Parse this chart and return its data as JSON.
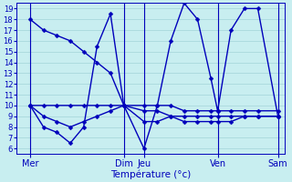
{
  "bg_color": "#c8eef0",
  "grid_color": "#a8d8dc",
  "line_color": "#0000bb",
  "xlabel": "Température (°c)",
  "ylim_min": 5.5,
  "ylim_max": 19.5,
  "yticks": [
    6,
    7,
    8,
    9,
    10,
    11,
    12,
    13,
    14,
    15,
    16,
    17,
    18,
    19
  ],
  "xlim_min": 0,
  "xlim_max": 20,
  "day_tick_positions": [
    1,
    8,
    9.5,
    15,
    19.5
  ],
  "day_labels": [
    "Mer",
    "Dim",
    "Jeu",
    "Ven",
    "Sam"
  ],
  "line1_x": [
    1,
    2,
    3,
    4,
    5,
    6,
    7,
    8,
    9.5,
    10.5,
    11.5,
    12.5,
    13.5,
    14.5,
    15,
    16,
    17,
    18,
    19.5
  ],
  "line1_y": [
    18.0,
    17.0,
    16.5,
    16.0,
    15.0,
    14.0,
    13.0,
    10.0,
    10.0,
    10.0,
    10.0,
    9.5,
    9.5,
    9.5,
    9.5,
    9.5,
    9.5,
    9.5,
    9.5
  ],
  "line2_x": [
    1,
    2,
    3,
    4,
    5,
    6,
    7,
    8,
    9.5,
    10.5,
    11.5,
    12.5,
    13.5,
    14.5,
    15,
    16,
    17,
    18,
    19.5
  ],
  "line2_y": [
    10.0,
    10.0,
    10.0,
    10.0,
    10.0,
    10.0,
    10.0,
    10.0,
    9.5,
    9.5,
    9.0,
    9.0,
    9.0,
    9.0,
    9.0,
    9.0,
    9.0,
    9.0,
    9.0
  ],
  "line3_x": [
    1,
    2,
    3,
    4,
    5,
    6,
    7,
    8,
    9.5,
    10.5,
    11.5,
    12.5,
    13.5,
    14.5,
    15,
    16,
    17,
    18,
    19.5
  ],
  "line3_y": [
    10.0,
    9.0,
    8.5,
    8.0,
    8.5,
    9.0,
    9.5,
    10.0,
    8.5,
    8.5,
    9.0,
    8.5,
    8.5,
    8.5,
    8.5,
    8.5,
    9.0,
    9.0,
    9.0
  ],
  "line4_x": [
    1,
    2,
    3,
    4,
    5,
    6,
    7,
    8,
    9.5,
    10.5,
    11.5,
    12.5,
    13.5,
    14.5,
    15,
    16,
    17,
    18,
    19.5
  ],
  "line4_y": [
    10.0,
    8.0,
    7.5,
    6.5,
    8.0,
    15.5,
    18.5,
    10.0,
    6.0,
    10.0,
    16.0,
    19.5,
    18.0,
    12.5,
    9.5,
    17.0,
    19.0,
    19.0,
    9.0
  ],
  "marker": "D",
  "marker_size": 2.5,
  "line_width": 1.0,
  "figsize": [
    3.2,
    2.0
  ],
  "dpi": 100
}
